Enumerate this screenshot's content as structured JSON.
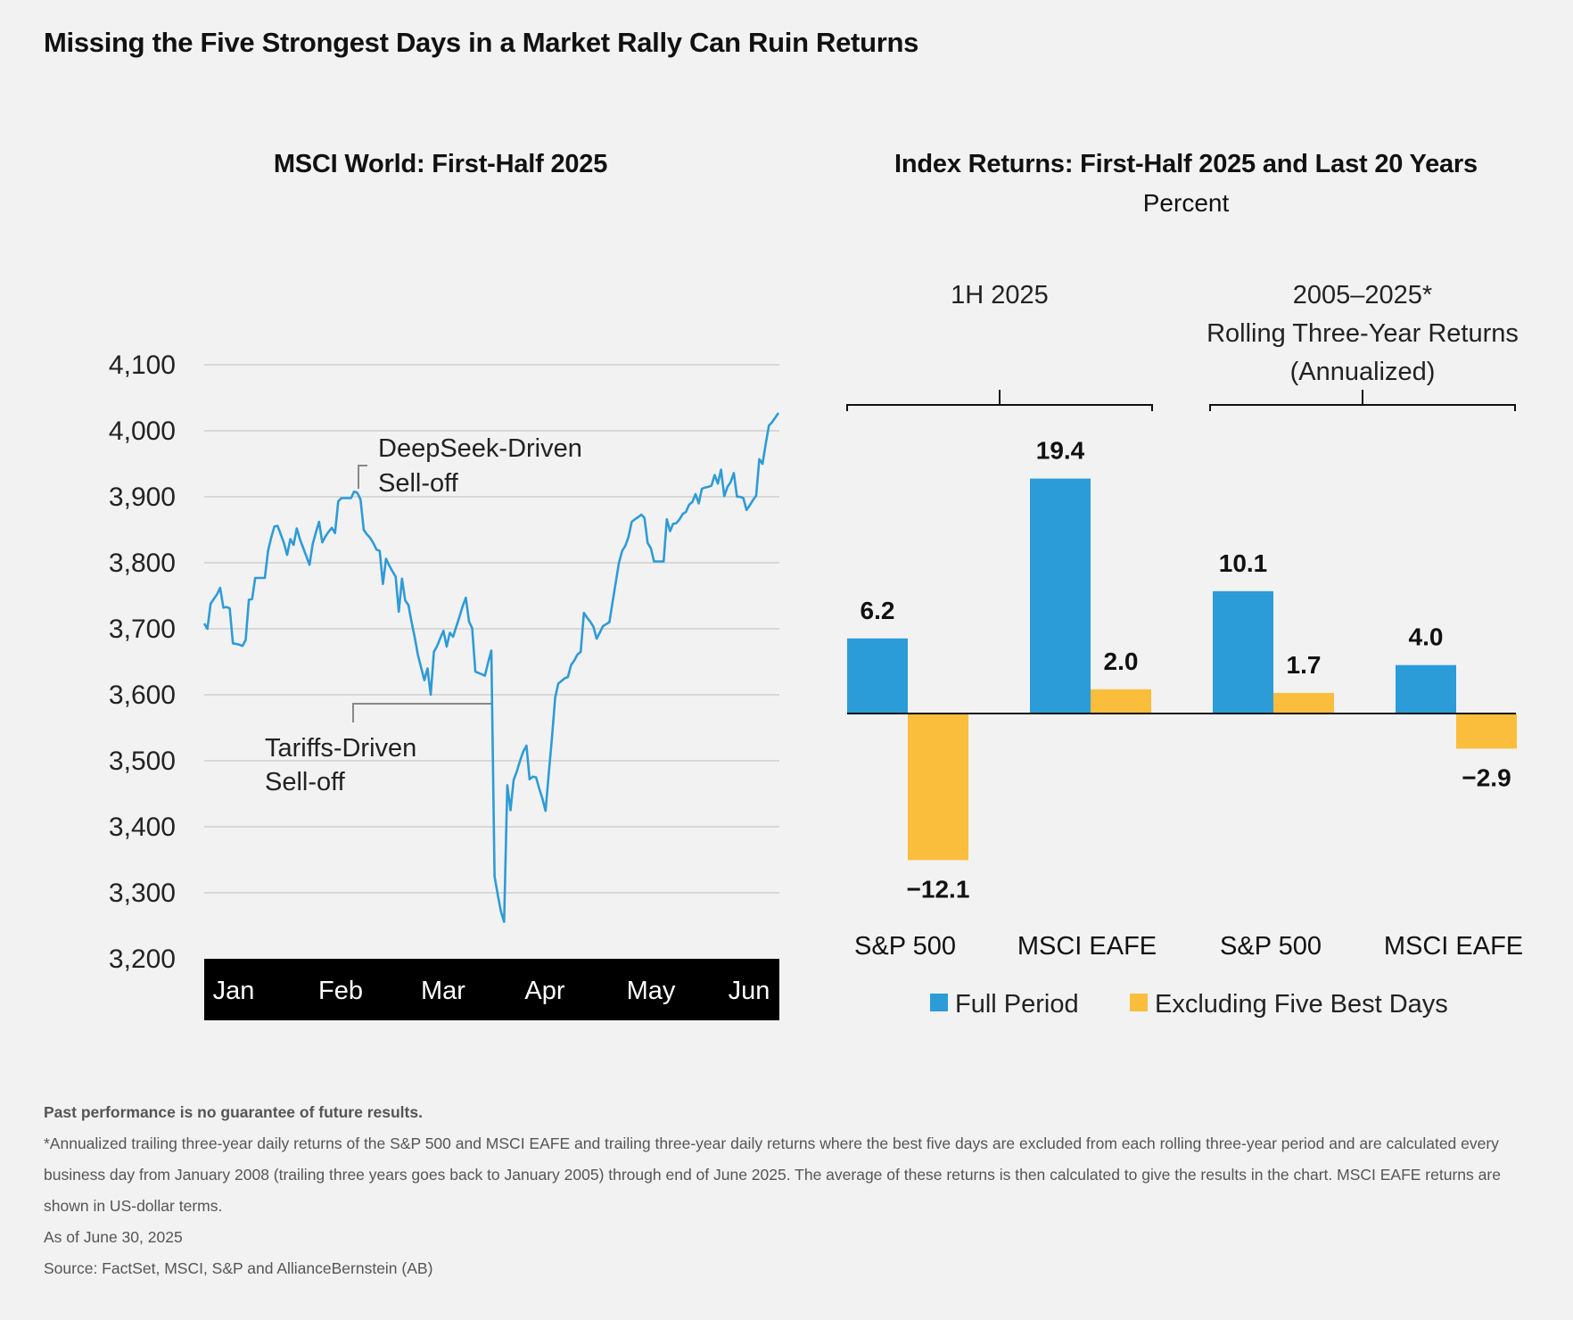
{
  "title": "Missing the Five Strongest Days in a Market Rally Can Ruin Returns",
  "colors": {
    "line": "#2e9bd6",
    "full": "#2b9cd8",
    "excl": "#fbbd3c",
    "grid": "#c8c8c8",
    "axis_band": "#000000"
  },
  "left_panel": {
    "title": "MSCI World: First-Half 2025"
  },
  "right_panel": {
    "title": "Index Returns: First-Half 2025 and Last 20 Years",
    "subtitle": "Percent"
  },
  "chart_data": [
    {
      "type": "line",
      "title": "MSCI World: First-Half 2025",
      "ylim": [
        3200,
        4100
      ],
      "yticks": [
        3200,
        3300,
        3400,
        3500,
        3600,
        3700,
        3800,
        3900,
        4000,
        4100
      ],
      "ytick_labels": [
        "3,200",
        "3,300",
        "3,400",
        "3,500",
        "3,600",
        "3,700",
        "3,800",
        "3,900",
        "4,000",
        "4,100"
      ],
      "x_labels": [
        "Jan",
        "Feb",
        "Mar",
        "Apr",
        "May",
        "Jun"
      ],
      "grid": true,
      "annotations": [
        {
          "lines": [
            "DeepSeek-Driven",
            "Sell-off"
          ]
        },
        {
          "lines": [
            "Tariffs-Driven",
            "Sell-off"
          ]
        }
      ],
      "series": [
        {
          "values": [
            3708,
            3700,
            3738,
            3745,
            3752,
            3762,
            3732,
            3733,
            3731,
            3678,
            3677,
            3676,
            3674,
            3683,
            3744,
            3745,
            3777,
            3777,
            3777,
            3777,
            3818,
            3838,
            3855,
            3856,
            3843,
            3830,
            3812,
            3836,
            3827,
            3852,
            3836,
            3823,
            3810,
            3797,
            3828,
            3846,
            3862,
            3831,
            3840,
            3847,
            3853,
            3845,
            3893,
            3898,
            3898,
            3898,
            3898,
            3908,
            3906,
            3896,
            3850,
            3843,
            3838,
            3830,
            3820,
            3818,
            3768,
            3806,
            3796,
            3787,
            3779,
            3726,
            3776,
            3743,
            3736,
            3710,
            3687,
            3660,
            3641,
            3622,
            3640,
            3600,
            3665,
            3674,
            3686,
            3697,
            3673,
            3694,
            3688,
            3703,
            3718,
            3734,
            3747,
            3711,
            3701,
            3635,
            3633,
            3631,
            3629,
            3649,
            3667,
            3325,
            3297,
            3272,
            3256,
            3463,
            3425,
            3471,
            3484,
            3500,
            3514,
            3523,
            3472,
            3476,
            3475,
            3458,
            3443,
            3424,
            3481,
            3535,
            3596,
            3617,
            3621,
            3625,
            3627,
            3645,
            3652,
            3661,
            3665,
            3724,
            3717,
            3711,
            3703,
            3685,
            3694,
            3704,
            3707,
            3710,
            3741,
            3770,
            3800,
            3818,
            3826,
            3839,
            3862,
            3866,
            3869,
            3873,
            3868,
            3830,
            3822,
            3802,
            3802,
            3802,
            3802,
            3866,
            3848,
            3859,
            3860,
            3866,
            3874,
            3877,
            3888,
            3892,
            3904,
            3890,
            3912,
            3914,
            3915,
            3917,
            3933,
            3920,
            3941,
            3901,
            3915,
            3922,
            3936,
            3900,
            3900,
            3898,
            3880,
            3887,
            3895,
            3902,
            3957,
            3950,
            3980,
            4008,
            4013,
            4020,
            4027
          ]
        }
      ]
    },
    {
      "type": "bar",
      "title": "Index Returns: First-Half 2025 and Last 20 Years",
      "subtitle": "Percent",
      "groups": [
        {
          "label": [
            "1H 2025"
          ],
          "categories": [
            "S&P 500",
            "MSCI EAFE"
          ]
        },
        {
          "label": [
            "2005–2025*",
            "Rolling Three-Year Returns",
            "(Annualized)"
          ],
          "categories": [
            "S&P 500",
            "MSCI EAFE"
          ]
        }
      ],
      "categories": [
        "S&P 500",
        "MSCI EAFE",
        "S&P 500",
        "MSCI EAFE"
      ],
      "series": [
        {
          "name": "Full Period",
          "values": [
            6.2,
            19.4,
            10.1,
            4.0
          ],
          "labels": [
            "6.2",
            "19.4",
            "10.1",
            "4.0"
          ]
        },
        {
          "name": "Excluding Five Best Days",
          "values": [
            -12.1,
            2.0,
            1.7,
            -2.9
          ],
          "labels": [
            "−12.1",
            "2.0",
            "1.7",
            "−2.9"
          ]
        }
      ],
      "legend": "bottom"
    }
  ],
  "footnotes": {
    "disclaimer": "Past performance is no guarantee of future results.",
    "note": "*Annualized trailing three-year daily returns of the S&P 500 and MSCI EAFE and trailing three-year daily returns where the best five days are excluded from each rolling three-year period and are calculated every business day from January 2008 (trailing three years goes back to January 2005) through end of June 2025. The average of these returns is then calculated to give the results in the chart. MSCI EAFE returns are shown in US-dollar terms.",
    "asof": "As of June 30, 2025",
    "source": "Source: FactSet, MSCI, S&P and AllianceBernstein (AB)"
  }
}
